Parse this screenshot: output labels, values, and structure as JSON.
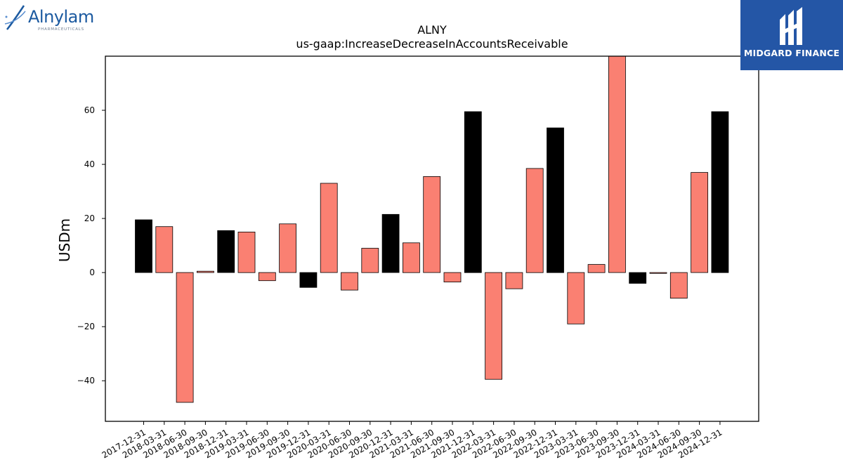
{
  "logos": {
    "left": {
      "name": "Alnylam",
      "sub": "PHARMACEUTICALS",
      "color": "#1c5aa0"
    },
    "right": {
      "name": "MIDGARD FINANCE",
      "color": "#2456a6"
    }
  },
  "chart_data": {
    "type": "bar",
    "title": "ALNY",
    "subtitle": "us-gaap:IncreaseDecreaseInAccountsReceivable",
    "xlabel": "",
    "ylabel": "USDm",
    "ylim": [
      -55,
      80
    ],
    "yticks": [
      -40,
      -20,
      0,
      20,
      40,
      60
    ],
    "ytick_labels": [
      "−40",
      "−20",
      "0",
      "20",
      "40",
      "60"
    ],
    "grid": false,
    "colors": {
      "annual": "#000000",
      "quarterly": "#fa8072",
      "edge": "#000000"
    },
    "categories": [
      "2017-12-31",
      "2018-03-31",
      "2018-06-30",
      "2018-09-30",
      "2018-12-31",
      "2019-03-31",
      "2019-06-30",
      "2019-09-30",
      "2019-12-31",
      "2020-03-31",
      "2020-06-30",
      "2020-09-30",
      "2020-12-31",
      "2021-03-31",
      "2021-06-30",
      "2021-09-30",
      "2021-12-31",
      "2022-03-31",
      "2022-06-30",
      "2022-09-30",
      "2022-12-31",
      "2023-03-31",
      "2023-06-30",
      "2023-09-30",
      "2023-12-31",
      "2024-03-31",
      "2024-06-30",
      "2024-09-30",
      "2024-12-31"
    ],
    "values": [
      19.5,
      17.0,
      -48.0,
      0.5,
      15.5,
      15.0,
      -3.0,
      18.0,
      -5.5,
      33.0,
      -6.5,
      9.0,
      21.5,
      11.0,
      35.5,
      -3.5,
      59.5,
      -39.5,
      -6.0,
      38.5,
      53.5,
      -19.0,
      3.0,
      80.0,
      -4.0,
      -0.3,
      -9.5,
      37.0,
      59.5
    ],
    "period": [
      "annual",
      "quarterly",
      "quarterly",
      "quarterly",
      "annual",
      "quarterly",
      "quarterly",
      "quarterly",
      "annual",
      "quarterly",
      "quarterly",
      "quarterly",
      "annual",
      "quarterly",
      "quarterly",
      "quarterly",
      "annual",
      "quarterly",
      "quarterly",
      "quarterly",
      "annual",
      "quarterly",
      "quarterly",
      "quarterly",
      "annual",
      "quarterly",
      "quarterly",
      "quarterly",
      "annual"
    ]
  }
}
